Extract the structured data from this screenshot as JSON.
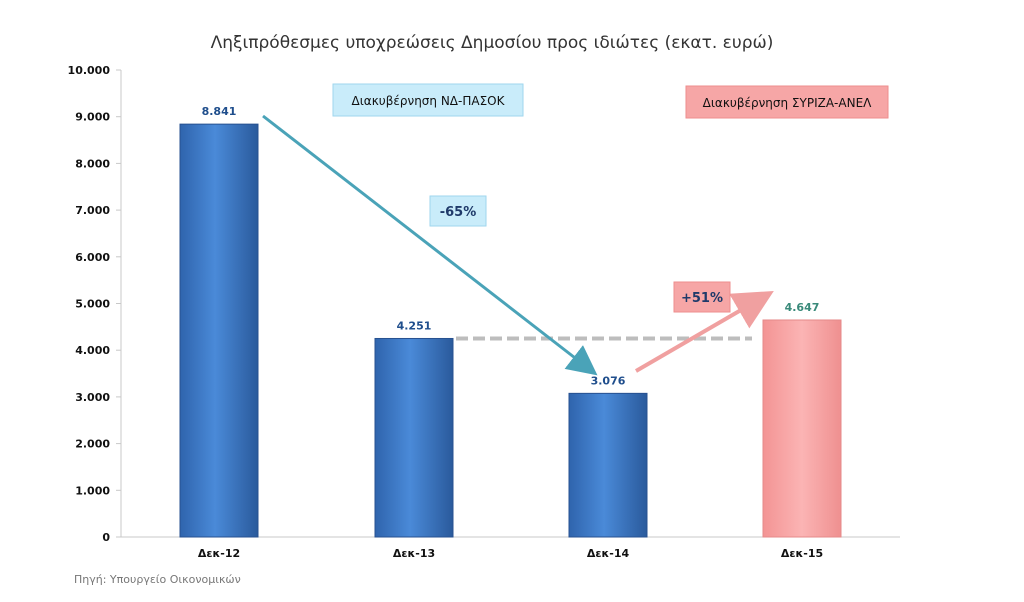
{
  "chart_data": {
    "type": "bar",
    "title": "Ληξιπρόθεσμες υποχρεώσεις Δημοσίου προς ιδιώτες (εκατ. ευρώ)",
    "categories": [
      "Δεκ-12",
      "Δεκ-13",
      "Δεκ-14",
      "Δεκ-15"
    ],
    "values": [
      8841,
      4251,
      3076,
      4647
    ],
    "value_labels": [
      "8.841",
      "4.251",
      "3.076",
      "4.647"
    ],
    "bar_colors": [
      "#3a78c8",
      "#3a78c8",
      "#3a78c8",
      "#f5a0a0"
    ],
    "label_colors": [
      "#1f4e8c",
      "#1f4e8c",
      "#1f4e8c",
      "#3a8a7a"
    ],
    "ylim": [
      0,
      10000
    ],
    "yticks": [
      0,
      1000,
      2000,
      3000,
      4000,
      5000,
      6000,
      7000,
      8000,
      9000,
      10000
    ],
    "ytick_labels": [
      "0",
      "1.000",
      "2.000",
      "3.000",
      "4.000",
      "5.000",
      "6.000",
      "7.000",
      "8.000",
      "9.000",
      "10.000"
    ],
    "reference_line_value": 4251,
    "source_note": "Πηγή: Υπουργείο Οικονομικών",
    "annotations": {
      "gov_nd": "Διακυβέρνηση ΝΔ-ΠΑΣΟΚ",
      "gov_syriza": "Διακυβέρνηση ΣΥΡΙΖΑ-ΑΝΕΛ",
      "pct_down": "-65%",
      "pct_up": "+51%"
    },
    "colors": {
      "gov_nd_fill": "#c9ecfa",
      "gov_syriza_fill": "#f6a6a6",
      "arrow_down": "#4aa3b8",
      "arrow_up": "#f0a0a0"
    }
  }
}
